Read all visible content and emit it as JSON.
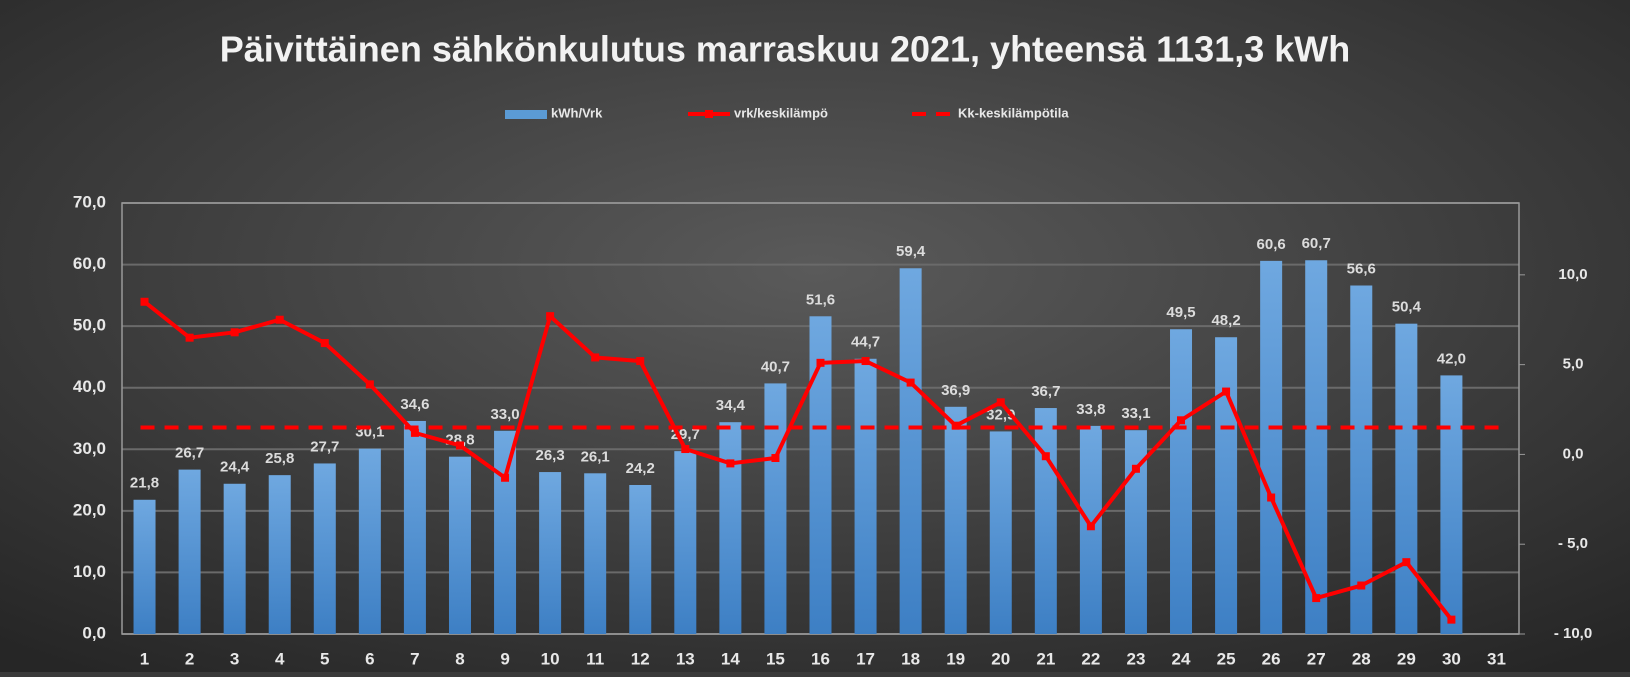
{
  "chart_data": {
    "type": "bar-line",
    "title": "Päivittäinen sähkönkulutus marraskuu 2021, yhteensä 1131,3 kWh",
    "categories": [
      "1",
      "2",
      "3",
      "4",
      "5",
      "6",
      "7",
      "8",
      "9",
      "10",
      "11",
      "12",
      "13",
      "14",
      "15",
      "16",
      "17",
      "18",
      "19",
      "20",
      "21",
      "22",
      "23",
      "24",
      "25",
      "26",
      "27",
      "28",
      "29",
      "30",
      "31"
    ],
    "series": [
      {
        "name": "kWh/Vrk",
        "color": "#5b9bd5",
        "kind": "bar",
        "values": [
          21.8,
          26.7,
          24.4,
          25.8,
          27.7,
          30.1,
          34.6,
          28.8,
          33.0,
          26.3,
          26.1,
          24.2,
          29.7,
          34.4,
          40.7,
          51.6,
          44.7,
          59.4,
          36.9,
          32.9,
          36.7,
          33.8,
          33.1,
          49.5,
          48.2,
          60.6,
          60.7,
          56.6,
          50.4,
          42.0,
          null
        ],
        "value_labels": [
          "21,8",
          "26,7",
          "24,4",
          "25,8",
          "27,7",
          "30,1",
          "34,6",
          "28,8",
          "33,0",
          "26,3",
          "26,1",
          "24,2",
          "29,7",
          "34,4",
          "40,7",
          "51,6",
          "44,7",
          "59,4",
          "36,9",
          "32,9",
          "36,7",
          "33,8",
          "33,1",
          "49,5",
          "48,2",
          "60,6",
          "60,7",
          "56,6",
          "50,4",
          "42,0",
          null
        ]
      },
      {
        "name": "vrk/keskilämpö",
        "color": "#ff0000",
        "kind": "line",
        "axis": "y2",
        "values": [
          8.5,
          6.5,
          6.8,
          7.5,
          6.2,
          3.9,
          1.2,
          0.5,
          -1.3,
          7.7,
          5.4,
          5.2,
          0.3,
          -0.5,
          -0.2,
          5.1,
          5.2,
          4.0,
          1.6,
          2.9,
          -0.1,
          -4.0,
          -0.8,
          1.9,
          3.5,
          -2.4,
          -8.0,
          -7.3,
          -6.0,
          -9.2,
          null
        ]
      },
      {
        "name": "Kk-keskilämpötila",
        "color": "#ff0000",
        "kind": "hline",
        "axis": "y2",
        "value": 1.5
      }
    ],
    "ylim": [
      0,
      70
    ],
    "yticks": [
      {
        "value": 0,
        "label": "0,0"
      },
      {
        "value": 10,
        "label": "10,0"
      },
      {
        "value": 20,
        "label": "20,0"
      },
      {
        "value": 30,
        "label": "30,0"
      },
      {
        "value": 40,
        "label": "40,0"
      },
      {
        "value": 50,
        "label": "50,0"
      },
      {
        "value": 60,
        "label": "60,0"
      },
      {
        "value": 70,
        "label": "70,0"
      }
    ],
    "y2lim": [
      -10,
      14
    ],
    "y2ticks": [
      {
        "value": -10,
        "label": "- 10,0"
      },
      {
        "value": -5,
        "label": "- 5,0"
      },
      {
        "value": 0,
        "label": "0,0"
      },
      {
        "value": 5,
        "label": "5,0"
      },
      {
        "value": 10,
        "label": "10,0"
      }
    ],
    "grid": true
  }
}
